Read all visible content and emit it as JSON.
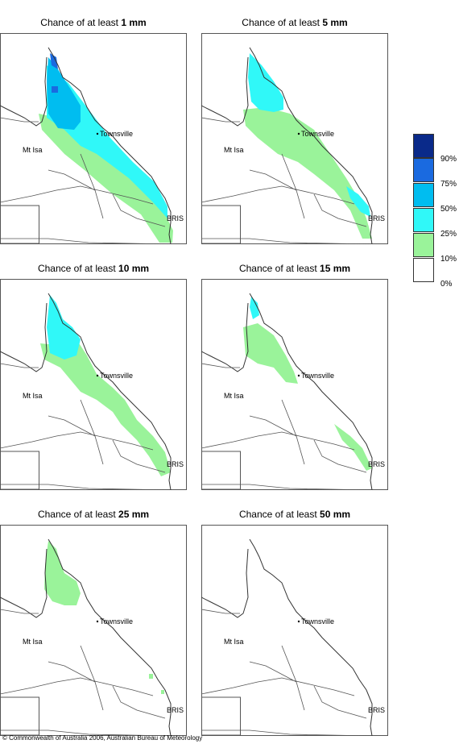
{
  "panels": [
    {
      "prefix": "Chance of at least ",
      "amount": "1 mm"
    },
    {
      "prefix": "Chance of at least ",
      "amount": "5 mm"
    },
    {
      "prefix": "Chance of at least ",
      "amount": "10 mm"
    },
    {
      "prefix": "Chance of at least ",
      "amount": "15 mm"
    },
    {
      "prefix": "Chance of at least ",
      "amount": "25 mm"
    },
    {
      "prefix": "Chance of at least ",
      "amount": "50 mm"
    }
  ],
  "places": {
    "townsville": "Townsville",
    "mt_isa": "Mt Isa",
    "bris": "BRIS"
  },
  "legend": {
    "labels": [
      "90%",
      "75%",
      "50%",
      "25%",
      "10%",
      "0%"
    ],
    "colors": [
      "#0a2a8a",
      "#1a6ae0",
      "#00bdf0",
      "#30f8f8",
      "#9af39a",
      "#ffffff"
    ]
  },
  "copyright": "© Commonwealth of Australia 2006, Australian Bureau of Meteorology"
}
